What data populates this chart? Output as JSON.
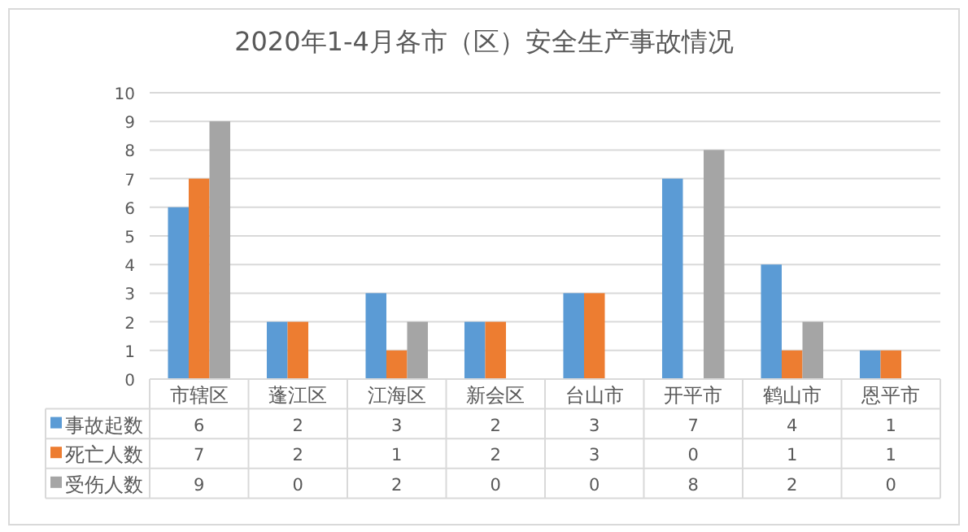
{
  "chart_data": {
    "type": "bar",
    "title": "2020年1-4月各市（区）安全生产事故情况",
    "categories": [
      "市辖区",
      "蓬江区",
      "江海区",
      "新会区",
      "台山市",
      "开平市",
      "鹤山市",
      "恩平市"
    ],
    "series": [
      {
        "name": "事故起数",
        "color": "#5b9bd5",
        "values": [
          6,
          2,
          3,
          2,
          3,
          7,
          4,
          1
        ]
      },
      {
        "name": "死亡人数",
        "color": "#ed7d31",
        "values": [
          7,
          2,
          1,
          2,
          3,
          0,
          1,
          1
        ]
      },
      {
        "name": "受伤人数",
        "color": "#a5a5a5",
        "values": [
          9,
          0,
          2,
          0,
          0,
          8,
          2,
          0
        ]
      }
    ],
    "ylim": [
      0,
      10
    ],
    "yticks": [
      0,
      1,
      2,
      3,
      4,
      5,
      6,
      7,
      8,
      9,
      10
    ],
    "grid": "y",
    "legend": "bottom",
    "data_labels": true
  }
}
